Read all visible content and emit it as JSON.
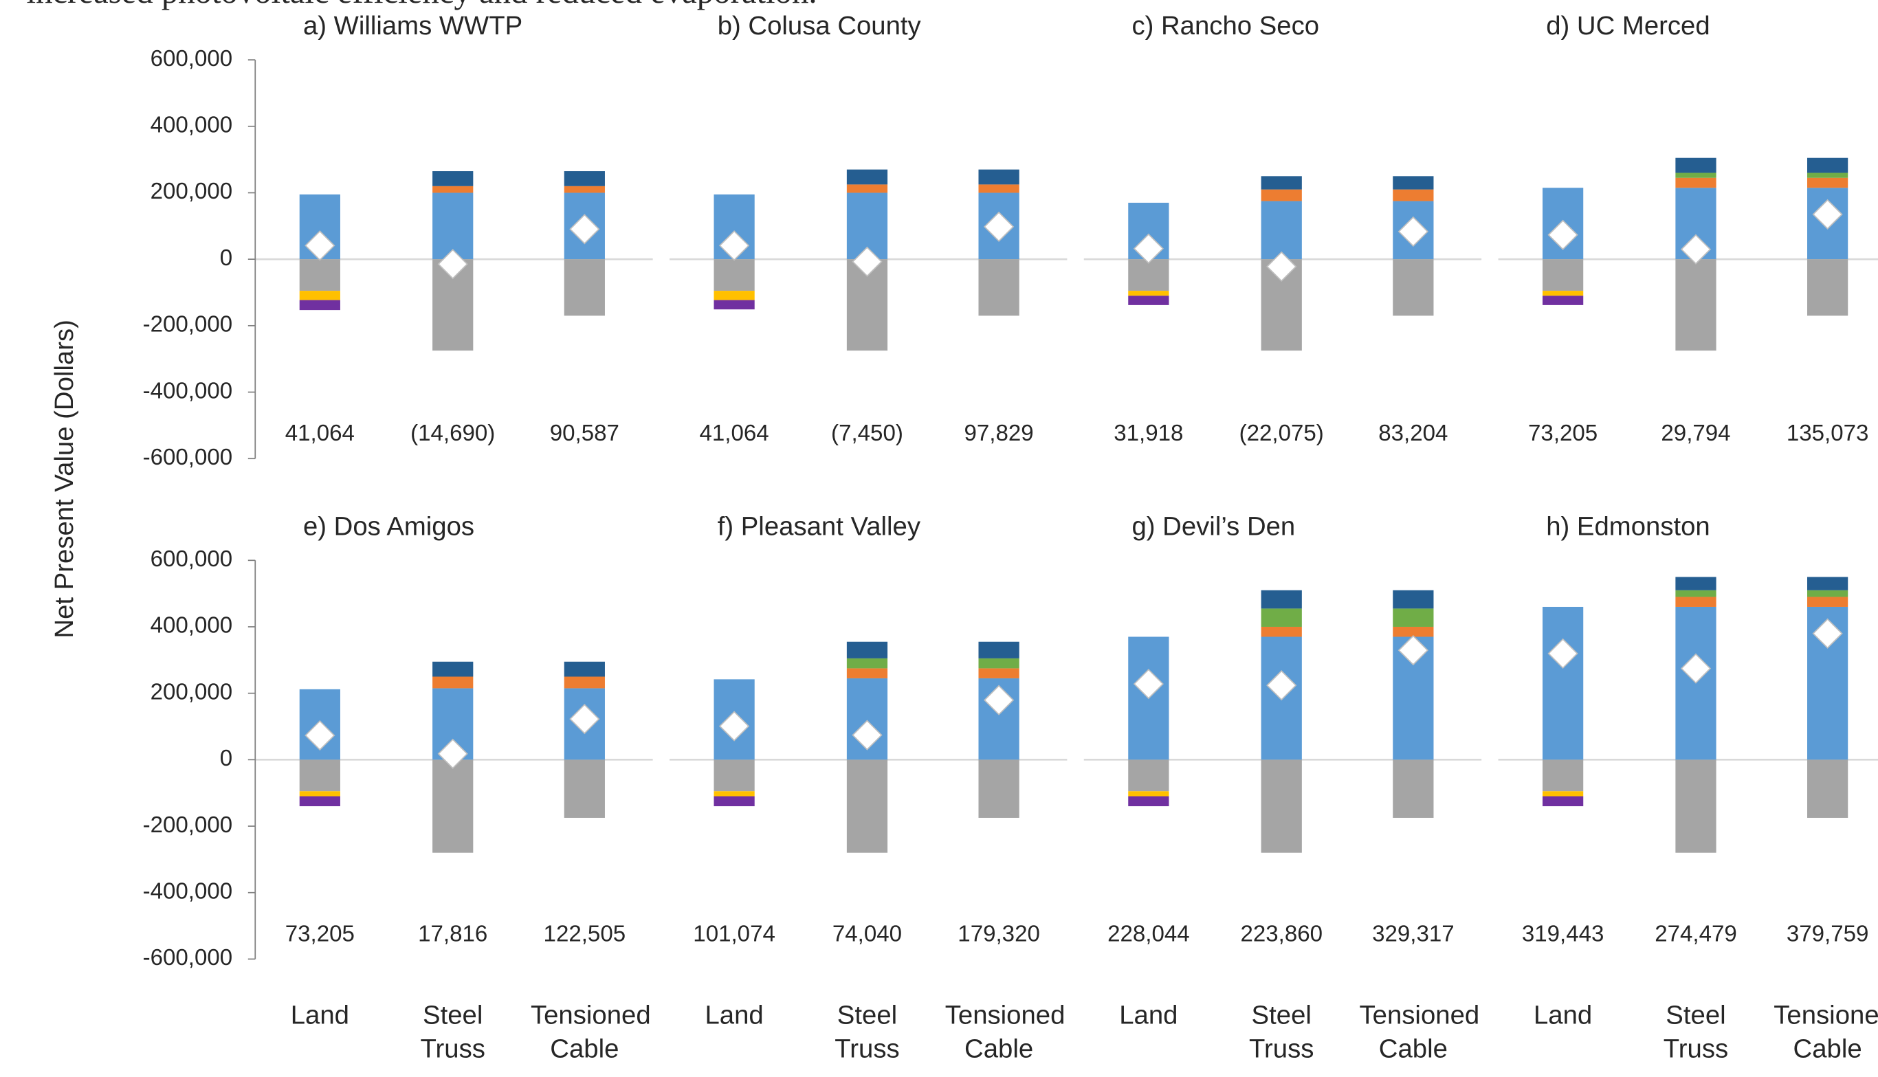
{
  "text_fragment": "increased photovoltaic efficiency and reduced evaporation.",
  "ylabel": "Net Present Value (Dollars)",
  "chart_data": [
    {
      "type": "bar",
      "title": "a) Williams WWTP",
      "ylim": [
        -600000,
        600000
      ],
      "yticks": [
        {
          "value": 600000,
          "label": "600,000"
        },
        {
          "value": 400000,
          "label": "400,000"
        },
        {
          "value": 200000,
          "label": "200,000"
        },
        0,
        {
          "value": -200000,
          "label": "-200,000"
        },
        {
          "value": -400000,
          "label": "-400,000"
        },
        {
          "value": -600000,
          "label": "-600,000"
        }
      ],
      "series": [
        {
          "color": "#5b9bd5",
          "values": [
            195000,
            200000,
            200000
          ]
        },
        {
          "color": "#ed7d31",
          "values": [
            null,
            20000,
            20000
          ]
        },
        {
          "color": "#70ad47",
          "values": [
            null,
            null,
            null
          ]
        },
        {
          "color": "#255e91",
          "values": [
            null,
            45000,
            45000
          ]
        },
        {
          "color": "#a5a5a5",
          "values": [
            -95000,
            -275000,
            -170000
          ]
        },
        {
          "color": "#ffc000",
          "values": [
            -28000,
            null,
            null
          ]
        },
        {
          "color": "#7030a0",
          "values": [
            -30000,
            null,
            null
          ]
        },
        {
          "marker": "diamond",
          "color": "#ffffff",
          "values": [
            41064,
            -14690,
            90587
          ],
          "value_labels": [
            "41,064",
            "(14,690)",
            "90,587"
          ]
        }
      ]
    },
    {
      "type": "bar",
      "title": "b) Colusa County",
      "ylim": [
        -600000,
        600000
      ],
      "series": [
        {
          "color": "#5b9bd5",
          "values": [
            195000,
            200000,
            200000
          ]
        },
        {
          "color": "#ed7d31",
          "values": [
            null,
            25000,
            25000
          ]
        },
        {
          "color": "#70ad47",
          "values": [
            null,
            null,
            null
          ]
        },
        {
          "color": "#255e91",
          "values": [
            null,
            45000,
            45000
          ]
        },
        {
          "color": "#a5a5a5",
          "values": [
            -95000,
            -275000,
            -170000
          ]
        },
        {
          "color": "#ffc000",
          "values": [
            -28000,
            null,
            null
          ]
        },
        {
          "color": "#7030a0",
          "values": [
            -28000,
            null,
            null
          ]
        },
        {
          "marker": "diamond",
          "color": "#ffffff",
          "values": [
            41064,
            -7450,
            97829
          ],
          "value_labels": [
            "41,064",
            "(7,450)",
            "97,829"
          ]
        }
      ]
    },
    {
      "type": "bar",
      "title": "c) Rancho Seco",
      "ylim": [
        -600000,
        600000
      ],
      "series": [
        {
          "color": "#5b9bd5",
          "values": [
            170000,
            175000,
            175000
          ]
        },
        {
          "color": "#ed7d31",
          "values": [
            null,
            35000,
            35000
          ]
        },
        {
          "color": "#70ad47",
          "values": [
            null,
            null,
            null
          ]
        },
        {
          "color": "#255e91",
          "values": [
            null,
            40000,
            40000
          ]
        },
        {
          "color": "#a5a5a5",
          "values": [
            -95000,
            -275000,
            -170000
          ]
        },
        {
          "color": "#ffc000",
          "values": [
            -15000,
            null,
            null
          ]
        },
        {
          "color": "#7030a0",
          "values": [
            -28000,
            null,
            null
          ]
        },
        {
          "marker": "diamond",
          "color": "#ffffff",
          "values": [
            31918,
            -22075,
            83204
          ],
          "value_labels": [
            "31,918",
            "(22,075)",
            "83,204"
          ]
        }
      ]
    },
    {
      "type": "bar",
      "title": "d) UC Merced",
      "ylim": [
        -600000,
        600000
      ],
      "series": [
        {
          "color": "#5b9bd5",
          "values": [
            215000,
            215000,
            215000
          ]
        },
        {
          "color": "#ed7d31",
          "values": [
            null,
            30000,
            30000
          ]
        },
        {
          "color": "#70ad47",
          "values": [
            null,
            15000,
            15000
          ]
        },
        {
          "color": "#255e91",
          "values": [
            null,
            45000,
            45000
          ]
        },
        {
          "color": "#a5a5a5",
          "values": [
            -95000,
            -275000,
            -170000
          ]
        },
        {
          "color": "#ffc000",
          "values": [
            -15000,
            null,
            null
          ]
        },
        {
          "color": "#7030a0",
          "values": [
            -28000,
            null,
            null
          ]
        },
        {
          "marker": "diamond",
          "color": "#ffffff",
          "values": [
            73205,
            29794,
            135073
          ],
          "value_labels": [
            "73,205",
            "29,794",
            "135,073"
          ]
        }
      ]
    },
    {
      "type": "bar",
      "title": "e) Dos Amigos",
      "ylim": [
        -600000,
        600000
      ],
      "yticks": [
        {
          "value": 600000,
          "label": "600,000"
        },
        {
          "value": 400000,
          "label": "400,000"
        },
        {
          "value": 200000,
          "label": "200,000"
        },
        0,
        {
          "value": -200000,
          "label": "-200,000"
        },
        {
          "value": -400000,
          "label": "-400,000"
        },
        {
          "value": -600000,
          "label": "-600,000"
        }
      ],
      "categories": [
        "Land",
        "Steel Truss",
        "Tensioned Cable"
      ],
      "series": [
        {
          "color": "#5b9bd5",
          "values": [
            212000,
            215000,
            215000
          ]
        },
        {
          "color": "#ed7d31",
          "values": [
            null,
            35000,
            35000
          ]
        },
        {
          "color": "#70ad47",
          "values": [
            null,
            null,
            null
          ]
        },
        {
          "color": "#255e91",
          "values": [
            null,
            45000,
            45000
          ]
        },
        {
          "color": "#a5a5a5",
          "values": [
            -95000,
            -280000,
            -175000
          ]
        },
        {
          "color": "#ffc000",
          "values": [
            -15000,
            null,
            null
          ]
        },
        {
          "color": "#7030a0",
          "values": [
            -30000,
            null,
            null
          ]
        },
        {
          "marker": "diamond",
          "color": "#ffffff",
          "values": [
            73205,
            17816,
            122505
          ],
          "value_labels": [
            "73,205",
            "17,816",
            "122,505"
          ]
        }
      ]
    },
    {
      "type": "bar",
      "title": "f) Pleasant Valley",
      "ylim": [
        -600000,
        600000
      ],
      "categories": [
        "Land",
        "Steel Truss",
        "Tensioned Cable"
      ],
      "series": [
        {
          "color": "#5b9bd5",
          "values": [
            242000,
            245000,
            245000
          ]
        },
        {
          "color": "#ed7d31",
          "values": [
            null,
            30000,
            30000
          ]
        },
        {
          "color": "#70ad47",
          "values": [
            null,
            30000,
            30000
          ]
        },
        {
          "color": "#255e91",
          "values": [
            null,
            50000,
            50000
          ]
        },
        {
          "color": "#a5a5a5",
          "values": [
            -95000,
            -280000,
            -175000
          ]
        },
        {
          "color": "#ffc000",
          "values": [
            -15000,
            null,
            null
          ]
        },
        {
          "color": "#7030a0",
          "values": [
            -30000,
            null,
            null
          ]
        },
        {
          "marker": "diamond",
          "color": "#ffffff",
          "values": [
            101074,
            74040,
            179320
          ],
          "value_labels": [
            "101,074",
            "74,040",
            "179,320"
          ]
        }
      ]
    },
    {
      "type": "bar",
      "title": "g) Devil’s Den",
      "ylim": [
        -600000,
        600000
      ],
      "categories": [
        "Land",
        "Steel Truss",
        "Tensioned Cable"
      ],
      "series": [
        {
          "color": "#5b9bd5",
          "values": [
            370000,
            370000,
            370000
          ]
        },
        {
          "color": "#ed7d31",
          "values": [
            null,
            30000,
            30000
          ]
        },
        {
          "color": "#70ad47",
          "values": [
            null,
            55000,
            55000
          ]
        },
        {
          "color": "#255e91",
          "values": [
            null,
            55000,
            55000
          ]
        },
        {
          "color": "#a5a5a5",
          "values": [
            -95000,
            -280000,
            -175000
          ]
        },
        {
          "color": "#ffc000",
          "values": [
            -15000,
            null,
            null
          ]
        },
        {
          "color": "#7030a0",
          "values": [
            -30000,
            null,
            null
          ]
        },
        {
          "marker": "diamond",
          "color": "#ffffff",
          "values": [
            228044,
            223860,
            329317
          ],
          "value_labels": [
            "228,044",
            "223,860",
            "329,317"
          ]
        }
      ]
    },
    {
      "type": "bar",
      "title": "h) Edmonston",
      "ylim": [
        -600000,
        600000
      ],
      "categories": [
        "Land",
        "Steel Truss",
        "Tensioned Cable"
      ],
      "series": [
        {
          "color": "#5b9bd5",
          "values": [
            460000,
            460000,
            460000
          ]
        },
        {
          "color": "#ed7d31",
          "values": [
            null,
            30000,
            30000
          ]
        },
        {
          "color": "#70ad47",
          "values": [
            null,
            20000,
            20000
          ]
        },
        {
          "color": "#255e91",
          "values": [
            null,
            40000,
            40000
          ]
        },
        {
          "color": "#a5a5a5",
          "values": [
            -95000,
            -280000,
            -175000
          ]
        },
        {
          "color": "#ffc000",
          "values": [
            -15000,
            null,
            null
          ]
        },
        {
          "color": "#7030a0",
          "values": [
            -30000,
            null,
            null
          ]
        },
        {
          "marker": "diamond",
          "color": "#ffffff",
          "values": [
            319443,
            274479,
            379759
          ],
          "value_labels": [
            "319,443",
            "274,479",
            "379,759"
          ]
        }
      ]
    }
  ]
}
